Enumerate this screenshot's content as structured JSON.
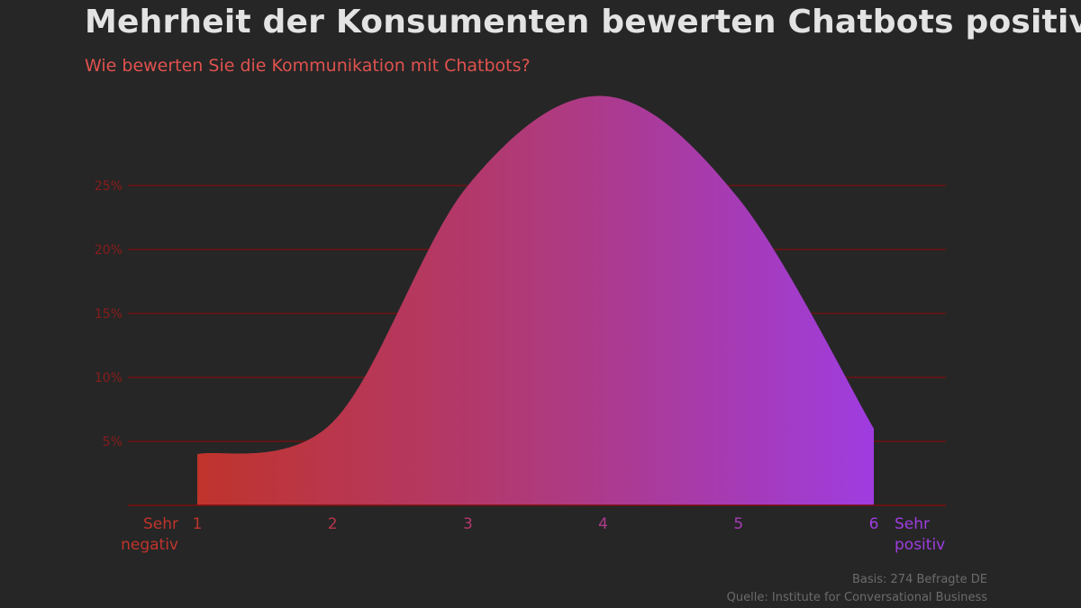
{
  "header": {
    "title": "Mehrheit der Konsumenten bewerten Chatbots positiv",
    "subtitle": "Wie bewerten Sie die Kommunikation mit Chatbots?"
  },
  "chart_data": {
    "type": "area",
    "title": "Mehrheit der Konsumenten bewerten Chatbots positiv",
    "subtitle": "Wie bewerten Sie die Kommunikation mit Chatbots?",
    "x": [
      1,
      2,
      3,
      4,
      5,
      6
    ],
    "x_tick_labels": [
      "1",
      "2",
      "3",
      "4",
      "5",
      "6"
    ],
    "xlim": [
      1,
      6
    ],
    "y": [
      4,
      6.5,
      25,
      32,
      24,
      6
    ],
    "ylim": [
      0,
      25
    ],
    "y_ticks": [
      5,
      10,
      15,
      20,
      25
    ],
    "y_tick_labels": [
      "5%",
      "10%",
      "15%",
      "20%",
      "25%"
    ],
    "x_end_labels": {
      "left": [
        "Sehr",
        "negativ"
      ],
      "right": [
        "Sehr",
        "positiv"
      ]
    },
    "grid": true,
    "smooth": true,
    "colors": {
      "fill_start": "#c0342c",
      "fill_mid": "#ae3a82",
      "fill_end": "#9f3ce0",
      "grid": "#7a0f0f",
      "tick_label": "#8a1c1c",
      "label_negativ": "#c0342c",
      "label_positiv": "#9f3ce0"
    }
  },
  "footer": {
    "basis": "Basis: 274 Befragte DE",
    "quelle": "Quelle: Institute for Conversational Business"
  }
}
